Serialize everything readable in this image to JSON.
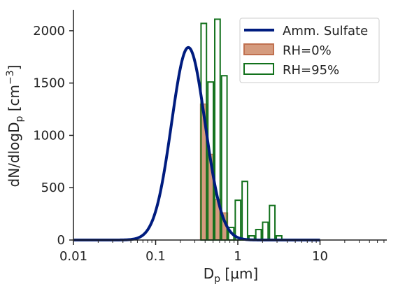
{
  "chart_data": {
    "type": "bar",
    "xscale": "log",
    "xlim": [
      0.01,
      65
    ],
    "ylim": [
      0,
      2200
    ],
    "x_ticks": [
      {
        "value": 0.01,
        "label": "0.01"
      },
      {
        "value": 0.1,
        "label": "0.1"
      },
      {
        "value": 1,
        "label": "1"
      },
      {
        "value": 10,
        "label": "10"
      }
    ],
    "y_ticks": [
      {
        "value": 0,
        "label": "0"
      },
      {
        "value": 500,
        "label": "500"
      },
      {
        "value": 1000,
        "label": "1000"
      },
      {
        "value": 1500,
        "label": "1500"
      },
      {
        "value": 2000,
        "label": "2000"
      }
    ],
    "xlabel": {
      "main": "D",
      "sub": "p",
      "rest": " [µm]"
    },
    "ylabel": {
      "main": "dN/dlogD",
      "sub": "p",
      "mid": " [cm",
      "sup": "−3",
      "end": "]"
    },
    "grid": false,
    "legend_position": "top-right",
    "series": [
      {
        "name": "Amm. Sulfate",
        "kind": "line",
        "color": "#001c7f",
        "lognormal": {
          "N": 1840,
          "gmd": 0.25,
          "gsd": 1.6
        },
        "x_range": [
          0.01,
          10
        ]
      },
      {
        "name": "RH=0%",
        "kind": "bar-filled",
        "fill": "#d59b7e",
        "stroke": "#c0704f",
        "bin_edges": [
          0.35,
          0.424,
          0.514,
          0.622,
          0.754
        ],
        "values": [
          1300,
          820,
          390,
          260
        ]
      },
      {
        "name": "RH=95%",
        "kind": "bar-outline",
        "stroke": "#12711c",
        "bin_edges": [
          0.35,
          0.424,
          0.514,
          0.622,
          0.754,
          0.913,
          1.106,
          1.34,
          1.623,
          1.966,
          2.382,
          2.885,
          3.495
        ],
        "values": [
          2070,
          1510,
          2110,
          1570,
          120,
          380,
          560,
          40,
          100,
          170,
          330,
          40
        ]
      }
    ]
  }
}
